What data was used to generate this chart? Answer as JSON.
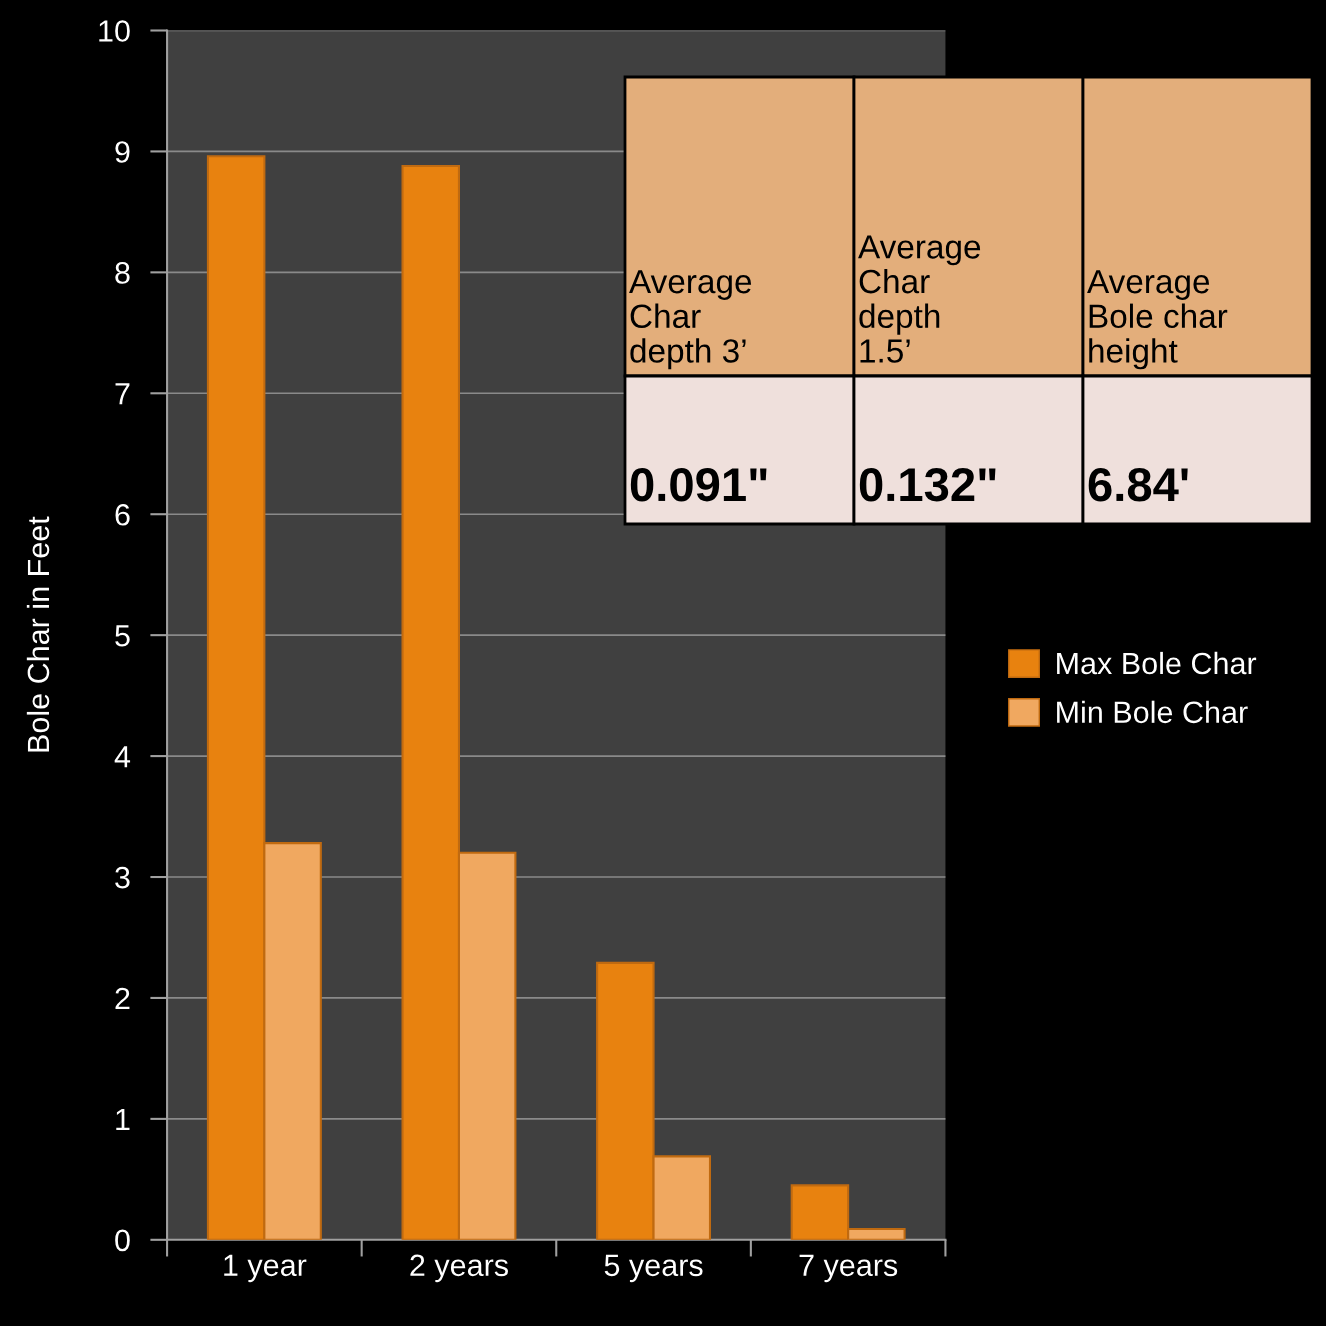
{
  "chart_data": {
    "type": "bar",
    "ylabel": "Bole Char in Feet",
    "categories": [
      "1 year",
      "2 years",
      "5 years",
      "7 years"
    ],
    "series": [
      {
        "name": "Max Bole Char",
        "color": "#e8820f",
        "values": [
          8.96,
          8.88,
          2.29,
          0.45
        ]
      },
      {
        "name": "Min Bole Char",
        "color": "#f0a860",
        "values": [
          3.28,
          3.2,
          0.69,
          0.09
        ]
      }
    ],
    "ylim": [
      0,
      10
    ],
    "yticks": [
      0,
      1,
      2,
      3,
      4,
      5,
      6,
      7,
      8,
      9,
      10
    ],
    "grid": "y",
    "legend": "right",
    "annotations": [
      "Average\nChar\ndepth 3’",
      "Average\nChar\ndepth\n1.5’",
      "Average\nBole char\nheight",
      "0.091\"",
      "0.132\"",
      "6.84'"
    ]
  }
}
